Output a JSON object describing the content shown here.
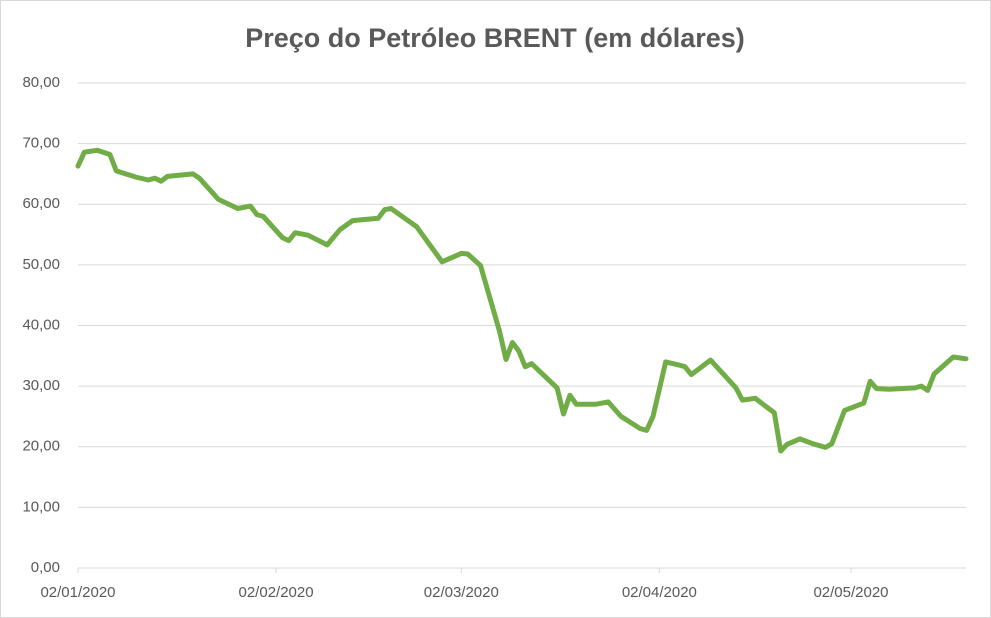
{
  "chart_data": {
    "type": "line",
    "title": "Preço do Petróleo BRENT (em dólares)",
    "x": [
      "2020-01-02",
      "2020-01-03",
      "2020-01-05",
      "2020-01-07",
      "2020-01-08",
      "2020-01-11",
      "2020-01-13",
      "2020-01-14",
      "2020-01-15",
      "2020-01-16",
      "2020-01-20",
      "2020-01-21",
      "2020-01-24",
      "2020-01-27",
      "2020-01-29",
      "2020-01-30",
      "2020-01-31",
      "2020-02-03",
      "2020-02-04",
      "2020-02-05",
      "2020-02-07",
      "2020-02-10",
      "2020-02-12",
      "2020-02-14",
      "2020-02-18",
      "2020-02-19",
      "2020-02-20",
      "2020-02-24",
      "2020-02-28",
      "2020-03-02",
      "2020-03-03",
      "2020-03-05",
      "2020-03-08",
      "2020-03-09",
      "2020-03-10",
      "2020-03-11",
      "2020-03-12",
      "2020-03-13",
      "2020-03-17",
      "2020-03-18",
      "2020-03-19",
      "2020-03-20",
      "2020-03-23",
      "2020-03-25",
      "2020-03-27",
      "2020-03-30",
      "2020-03-31",
      "2020-04-01",
      "2020-04-03",
      "2020-04-05",
      "2020-04-06",
      "2020-04-07",
      "2020-04-10",
      "2020-04-14",
      "2020-04-15",
      "2020-04-17",
      "2020-04-20",
      "2020-04-21",
      "2020-04-22",
      "2020-04-24",
      "2020-04-26",
      "2020-04-28",
      "2020-04-29",
      "2020-05-01",
      "2020-05-04",
      "2020-05-05",
      "2020-05-06",
      "2020-05-08",
      "2020-05-12",
      "2020-05-13",
      "2020-05-14",
      "2020-05-15",
      "2020-05-18",
      "2020-05-20"
    ],
    "series": [
      {
        "name": "BRENT",
        "color": "#70ad47",
        "values": [
          66.3,
          68.6,
          68.9,
          68.2,
          65.5,
          64.5,
          64.0,
          64.3,
          63.8,
          64.6,
          65.0,
          64.3,
          60.8,
          59.3,
          59.7,
          58.3,
          58.0,
          54.5,
          54.0,
          55.3,
          54.9,
          53.3,
          55.8,
          57.3,
          57.7,
          59.1,
          59.3,
          56.3,
          50.5,
          51.9,
          51.8,
          49.9,
          39.0,
          34.4,
          37.2,
          35.8,
          33.2,
          33.7,
          29.7,
          25.4,
          28.5,
          27.0,
          27.0,
          27.4,
          25.0,
          23.0,
          22.7,
          25.0,
          34.0,
          33.5,
          33.2,
          31.9,
          34.3,
          29.7,
          27.7,
          28.0,
          25.6,
          19.3,
          20.4,
          21.3,
          20.5,
          19.9,
          20.5,
          26.0,
          27.2,
          30.8,
          29.6,
          29.5,
          29.7,
          30.0,
          29.3,
          32.0,
          34.8,
          34.5
        ]
      }
    ],
    "xlim": [
      "2020-01-02",
      "2020-05-20"
    ],
    "xticks": [
      {
        "value": "2020-01-02",
        "label": "02/01/2020"
      },
      {
        "value": "2020-02-02",
        "label": "02/02/2020"
      },
      {
        "value": "2020-03-02",
        "label": "02/03/2020"
      },
      {
        "value": "2020-04-02",
        "label": "02/04/2020"
      },
      {
        "value": "2020-05-02",
        "label": "02/05/2020"
      }
    ],
    "ylim": [
      0,
      80
    ],
    "yticks": [
      {
        "value": 0,
        "label": "0,00"
      },
      {
        "value": 10,
        "label": "10,00"
      },
      {
        "value": 20,
        "label": "20,00"
      },
      {
        "value": 30,
        "label": "30,00"
      },
      {
        "value": 40,
        "label": "40,00"
      },
      {
        "value": 50,
        "label": "50,00"
      },
      {
        "value": 60,
        "label": "60,00"
      },
      {
        "value": 70,
        "label": "70,00"
      },
      {
        "value": 80,
        "label": "80,00"
      }
    ],
    "grid": true
  }
}
